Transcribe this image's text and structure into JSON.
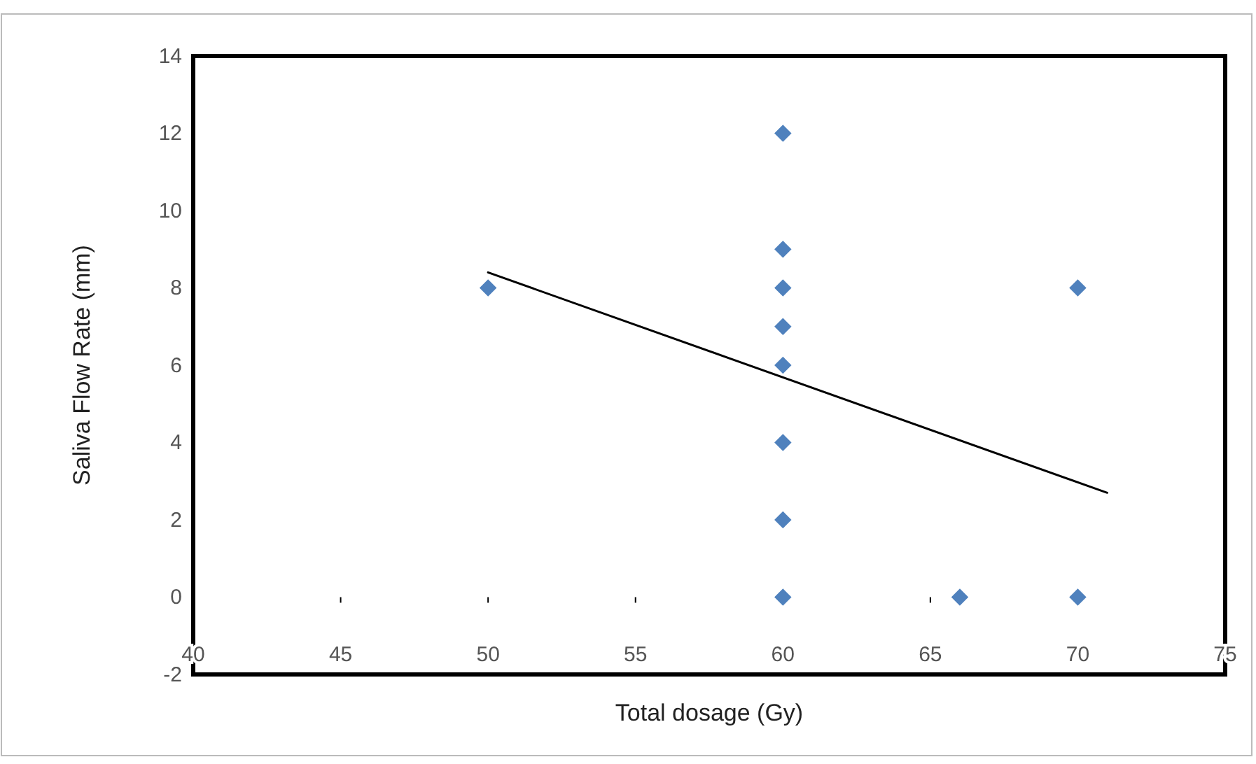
{
  "chart_data": {
    "type": "scatter",
    "xlabel": "Total dosage (Gy)",
    "ylabel": "Saliva Flow Rate (mm)",
    "xlim": [
      40,
      75
    ],
    "xticks": [
      40,
      45,
      50,
      55,
      60,
      65,
      70,
      75
    ],
    "ylim": [
      -2,
      14
    ],
    "yticks": [
      -2,
      0,
      2,
      4,
      6,
      8,
      10,
      12,
      14
    ],
    "grid": false,
    "marker": "diamond",
    "series": [
      {
        "color": "#4f81bd",
        "x": [
          50,
          60,
          60,
          60,
          60,
          60,
          60,
          60,
          60,
          66,
          70,
          70
        ],
        "values": [
          8,
          12,
          9,
          8,
          7,
          6,
          4,
          2,
          0,
          0,
          8,
          0
        ]
      },
      {
        "type": "line",
        "color": "#000000",
        "x": [
          50,
          71
        ],
        "values": [
          8.4,
          2.7
        ],
        "marker": "none"
      }
    ]
  }
}
